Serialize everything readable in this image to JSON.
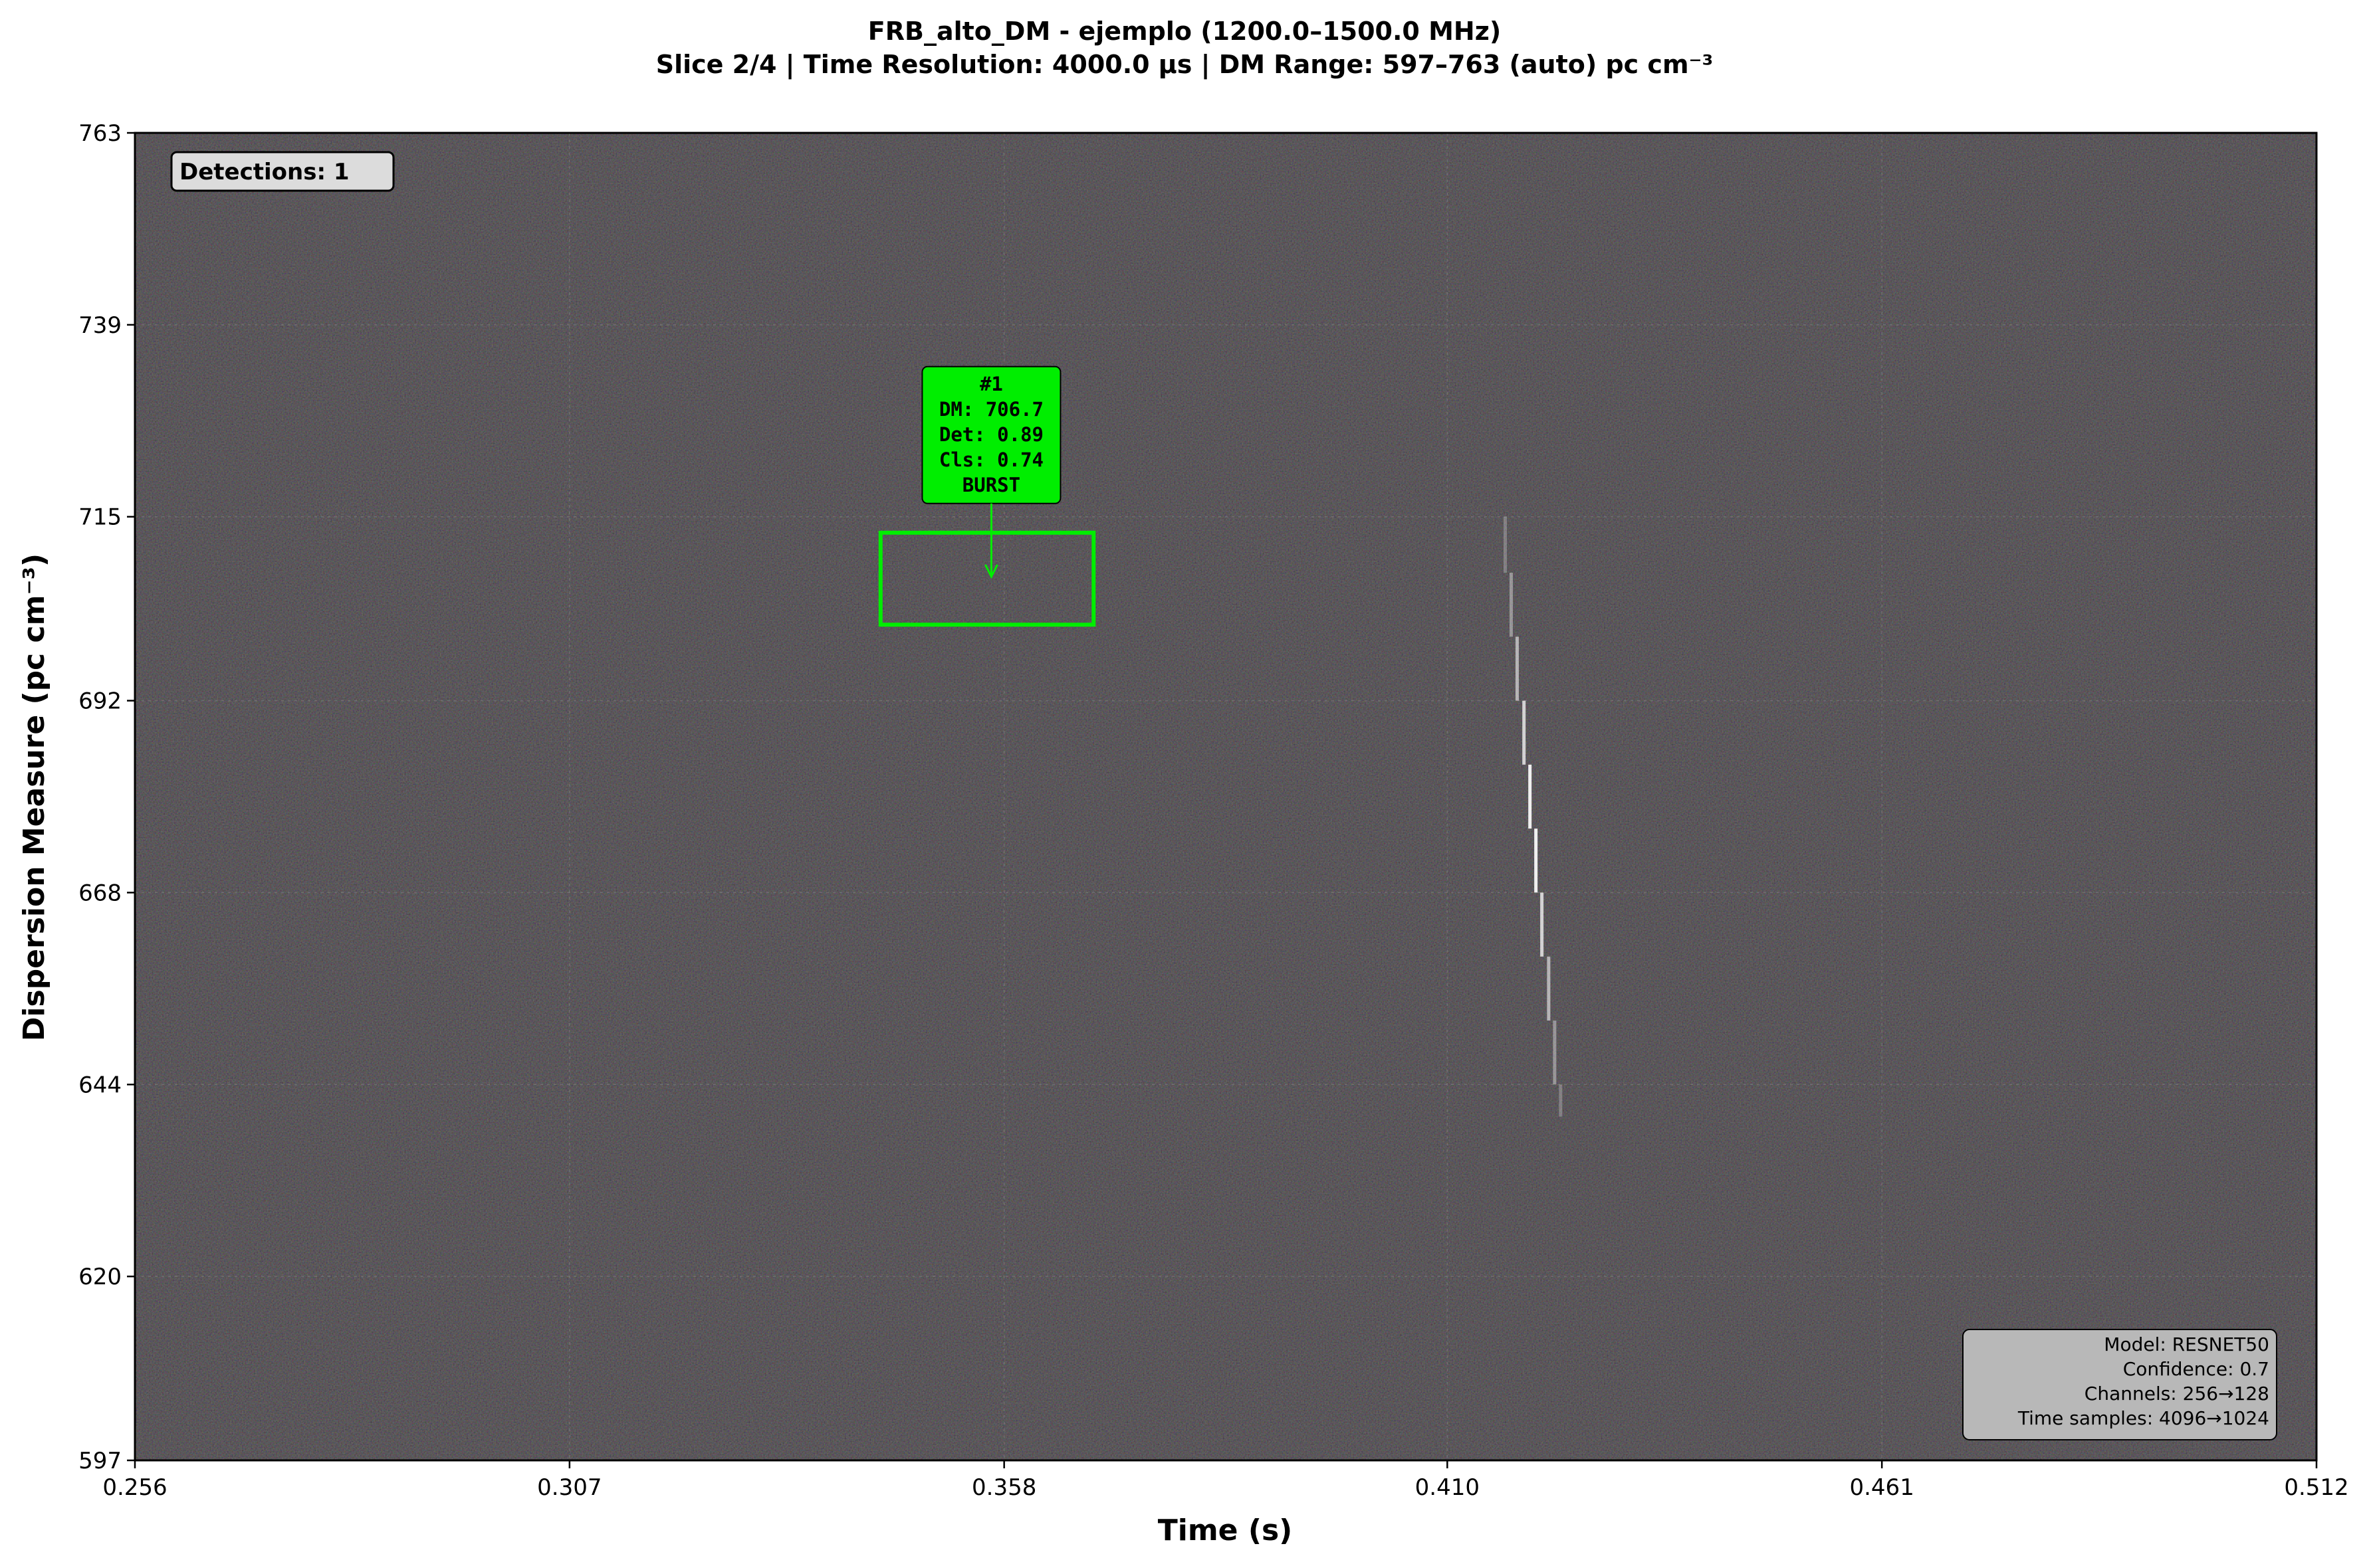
{
  "chart_data": {
    "type": "heatmap",
    "title_lines": [
      "FRB_alto_DM - ejemplo (1200.0–1500.0 MHz)",
      "Slice 2/4 | Time Resolution: 4000.0 µs | DM Range: 597–763 (auto) pc cm⁻³"
    ],
    "xlabel": "Time (s)",
    "ylabel": "Dispersion Measure (pc cm⁻³)",
    "xlim": [
      0.256,
      0.512
    ],
    "ylim": [
      597,
      763
    ],
    "xticks": [
      {
        "value": 0.256,
        "label": "0.256"
      },
      {
        "value": 0.307,
        "label": "0.307"
      },
      {
        "value": 0.358,
        "label": "0.358"
      },
      {
        "value": 0.41,
        "label": "0.410"
      },
      {
        "value": 0.461,
        "label": "0.461"
      },
      {
        "value": 0.512,
        "label": "0.512"
      }
    ],
    "yticks": [
      {
        "value": 763,
        "label": "763"
      },
      {
        "value": 739,
        "label": "739"
      },
      {
        "value": 715,
        "label": "715"
      },
      {
        "value": 692,
        "label": "692"
      },
      {
        "value": 668,
        "label": "668"
      },
      {
        "value": 644,
        "label": "644"
      },
      {
        "value": 620,
        "label": "620"
      },
      {
        "value": 597,
        "label": "597"
      }
    ],
    "grid": true,
    "background_color": "#2a2a2a",
    "detections_label": "Detections: 1",
    "burst_trace": {
      "color": "#ffffff",
      "points": [
        {
          "t": 0.4168,
          "dm": 715
        },
        {
          "t": 0.4175,
          "dm": 708
        },
        {
          "t": 0.4182,
          "dm": 700
        },
        {
          "t": 0.419,
          "dm": 692
        },
        {
          "t": 0.4197,
          "dm": 684
        },
        {
          "t": 0.4204,
          "dm": 676
        },
        {
          "t": 0.4211,
          "dm": 668
        },
        {
          "t": 0.4219,
          "dm": 660
        },
        {
          "t": 0.4226,
          "dm": 652
        },
        {
          "t": 0.4233,
          "dm": 644
        },
        {
          "t": 0.4238,
          "dm": 640
        }
      ]
    },
    "detections": [
      {
        "box": {
          "x0": 0.3435,
          "x1": 0.3685,
          "dm0": 701.5,
          "dm1": 713
        },
        "arrow_tip": {
          "t": 0.3565,
          "dm": 707.5
        },
        "color": "#00ee00",
        "label_lines": [
          "#1",
          "DM: 706.7",
          "Det: 0.89",
          "Cls: 0.74",
          "BURST"
        ]
      }
    ],
    "info_box": {
      "lines": [
        "Model: RESNET50",
        "Confidence: 0.7",
        "Channels: 256→128",
        "Time samples: 4096→1024"
      ]
    }
  }
}
